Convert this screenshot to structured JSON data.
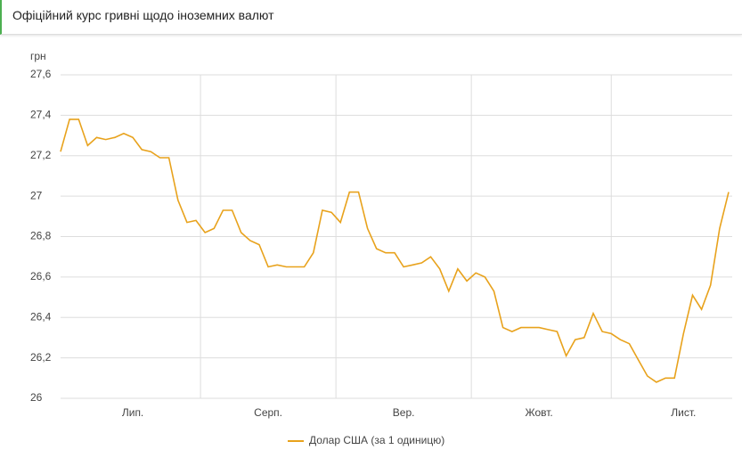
{
  "chart_data": {
    "type": "line",
    "title": "Офіційний курс гривні щодо іноземних валют",
    "y_label": "грн",
    "categories": [
      null,
      null,
      null,
      null,
      null,
      null,
      null,
      null,
      "Лип.",
      null,
      null,
      null,
      null,
      null,
      null,
      null,
      null,
      null,
      null,
      null,
      null,
      null,
      null,
      "Серп.",
      null,
      null,
      null,
      null,
      null,
      null,
      null,
      null,
      null,
      null,
      null,
      null,
      null,
      null,
      "Вер.",
      null,
      null,
      null,
      null,
      null,
      null,
      null,
      null,
      null,
      null,
      null,
      null,
      null,
      null,
      "Жовт.",
      null,
      null,
      null,
      null,
      null,
      null,
      null,
      null,
      null,
      null,
      null,
      null,
      null,
      null,
      null,
      "Лист.",
      null,
      null,
      null,
      null,
      null
    ],
    "series": [
      {
        "name": "Долар США (за 1 одиницю)",
        "color": "#e8a21c",
        "values": [
          27.22,
          27.38,
          27.38,
          27.25,
          27.29,
          27.28,
          27.29,
          27.31,
          27.29,
          27.23,
          27.22,
          27.19,
          27.19,
          26.98,
          26.87,
          26.88,
          26.82,
          26.84,
          26.93,
          26.93,
          26.82,
          26.78,
          26.76,
          26.65,
          26.66,
          26.65,
          26.65,
          26.65,
          26.72,
          26.93,
          26.92,
          26.87,
          27.02,
          27.02,
          26.84,
          26.74,
          26.72,
          26.72,
          26.65,
          26.66,
          26.67,
          26.7,
          26.64,
          26.53,
          26.64,
          26.58,
          26.62,
          26.6,
          26.53,
          26.35,
          26.33,
          26.35,
          26.35,
          26.35,
          26.34,
          26.33,
          26.21,
          26.29,
          26.3,
          26.42,
          26.33,
          26.32,
          26.29,
          26.27,
          26.19,
          26.11,
          26.08,
          26.1,
          26.1,
          26.32,
          26.51,
          26.44,
          26.56,
          26.84,
          27.02
        ]
      }
    ],
    "ylim": [
      26,
      27.6
    ],
    "yticks": [
      26,
      {
        "value": 26.2,
        "label": "26,2"
      },
      {
        "value": 26.4,
        "label": "26,4"
      },
      {
        "value": 26.6,
        "label": "26,6"
      },
      {
        "value": 26.8,
        "label": "26,8"
      },
      27,
      {
        "value": 27.2,
        "label": "27,2"
      },
      {
        "value": 27.4,
        "label": "27,4"
      },
      {
        "value": 27.6,
        "label": "27,6"
      }
    ],
    "grid": true,
    "legend": "bottom"
  }
}
